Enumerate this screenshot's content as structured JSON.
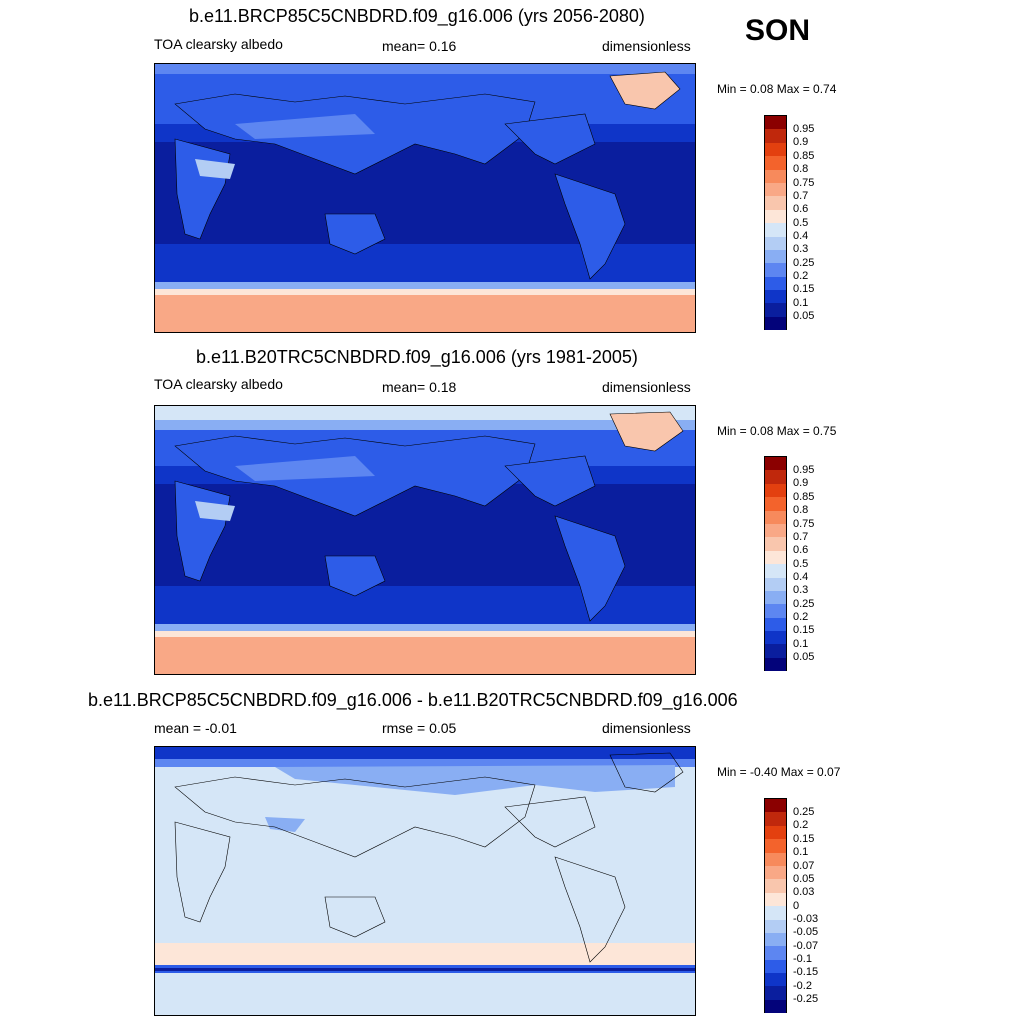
{
  "season": "SON",
  "panels": [
    {
      "title": "b.e11.BRCP85C5CNBDRD.f09_g16.006 (yrs 2056-2080)",
      "left_label": "TOA clearsky albedo",
      "center_label": "mean=   0.16",
      "right_label": "dimensionless",
      "minmax": "Min =   0.08 Max =   0.74",
      "colorbar_labels": [
        "0.95",
        "0.9",
        "0.85",
        "0.8",
        "0.75",
        "0.7",
        "0.6",
        "0.5",
        "0.4",
        "0.3",
        "0.25",
        "0.2",
        "0.15",
        "0.1",
        "0.05"
      ],
      "colorbar_colors": [
        "#8b0000",
        "#c0280c",
        "#e3400f",
        "#f3632c",
        "#f78a5c",
        "#f9a886",
        "#f9c6ad",
        "#fde6d8",
        "#d5e6f7",
        "#b3cdf4",
        "#89aef3",
        "#5d86f1",
        "#2d5ce8",
        "#0f35c8",
        "#0a1e9e",
        "#03037a"
      ],
      "value_range": [
        0.08,
        0.74
      ]
    },
    {
      "title": "b.e11.B20TRC5CNBDRD.f09_g16.006 (yrs 1981-2005)",
      "left_label": "TOA clearsky albedo",
      "center_label": "mean=   0.18",
      "right_label": "dimensionless",
      "minmax": "Min =   0.08 Max =   0.75",
      "colorbar_labels": [
        "0.95",
        "0.9",
        "0.85",
        "0.8",
        "0.75",
        "0.7",
        "0.6",
        "0.5",
        "0.4",
        "0.3",
        "0.25",
        "0.2",
        "0.15",
        "0.1",
        "0.05"
      ],
      "colorbar_colors": [
        "#8b0000",
        "#c0280c",
        "#e3400f",
        "#f3632c",
        "#f78a5c",
        "#f9a886",
        "#f9c6ad",
        "#fde6d8",
        "#d5e6f7",
        "#b3cdf4",
        "#89aef3",
        "#5d86f1",
        "#2d5ce8",
        "#0f35c8",
        "#0a1e9e",
        "#03037a"
      ],
      "value_range": [
        0.08,
        0.75
      ]
    },
    {
      "title": "b.e11.BRCP85C5CNBDRD.f09_g16.006 - b.e11.B20TRC5CNBDRD.f09_g16.006",
      "left_label": "mean =  -0.01",
      "center_label": "rmse =   0.05",
      "right_label": "dimensionless",
      "minmax": "Min =  -0.40 Max =   0.07",
      "colorbar_labels": [
        "0.25",
        "0.2",
        "0.15",
        "0.1",
        "0.07",
        "0.05",
        "0.03",
        "0",
        "-0.03",
        "-0.05",
        "-0.07",
        "-0.1",
        "-0.15",
        "-0.2",
        "-0.25"
      ],
      "colorbar_colors": [
        "#8b0000",
        "#c0280c",
        "#e3400f",
        "#f3632c",
        "#f78a5c",
        "#f9a886",
        "#f9c6ad",
        "#fde6d8",
        "#d5e6f7",
        "#b3cdf4",
        "#89aef3",
        "#5d86f1",
        "#2d5ce8",
        "#0f35c8",
        "#0a1e9e",
        "#03037a"
      ],
      "value_range": [
        -0.4,
        0.07
      ]
    }
  ]
}
